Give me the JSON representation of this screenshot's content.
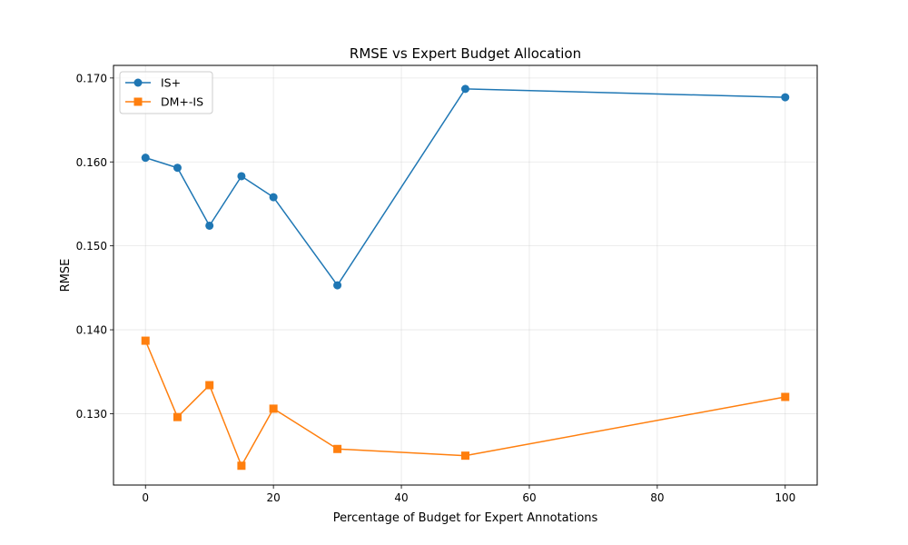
{
  "chart_data": {
    "type": "line",
    "title": "RMSE vs Expert Budget Allocation",
    "xlabel": "Percentage of Budget for Expert Annotations",
    "ylabel": "RMSE",
    "xlim": [
      -5,
      105
    ],
    "ylim": [
      0.1215,
      0.1715
    ],
    "xticks": [
      0,
      20,
      40,
      60,
      80,
      100
    ],
    "yticks": [
      0.13,
      0.14,
      0.15,
      0.16,
      0.17
    ],
    "xtick_labels": [
      "0",
      "20",
      "40",
      "60",
      "80",
      "100"
    ],
    "ytick_labels": [
      "0.130",
      "0.140",
      "0.150",
      "0.160",
      "0.170"
    ],
    "grid": true,
    "legend_position": "top-left",
    "x": [
      0,
      5,
      10,
      15,
      20,
      30,
      50,
      100
    ],
    "series": [
      {
        "name": "IS+",
        "color": "#1f77b4",
        "marker": "circle",
        "values": [
          0.1605,
          0.1593,
          0.1524,
          0.1583,
          0.1558,
          0.1453,
          0.1687,
          0.1677
        ]
      },
      {
        "name": "DM+-IS",
        "color": "#ff7f0e",
        "marker": "square",
        "values": [
          0.1387,
          0.1296,
          0.1334,
          0.1238,
          0.1306,
          0.1258,
          0.125,
          0.132
        ]
      }
    ]
  }
}
